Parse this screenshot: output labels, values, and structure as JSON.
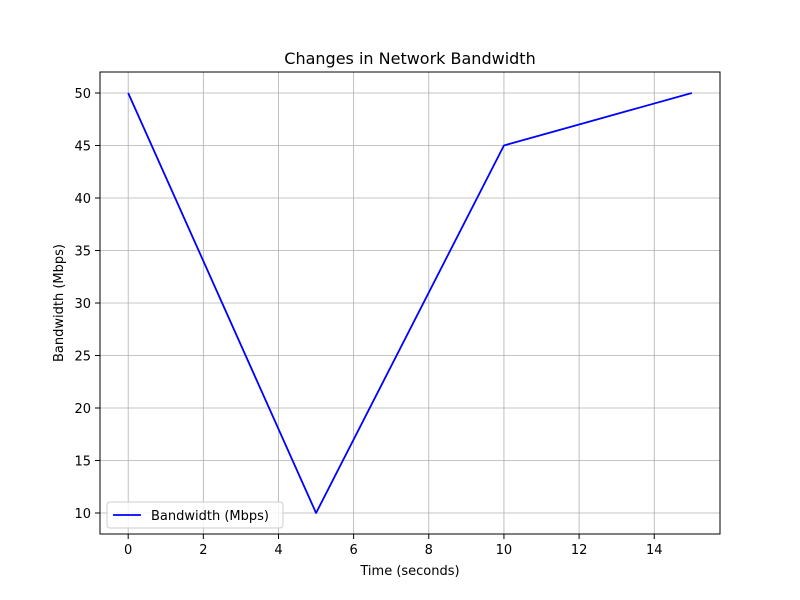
{
  "chart_data": {
    "type": "line",
    "title": "Changes in Network Bandwidth",
    "xlabel": "Time (seconds)",
    "ylabel": "Bandwidth (Mbps)",
    "xlim": [
      -0.75,
      15.75
    ],
    "ylim": [
      8,
      52
    ],
    "xticks": [
      0,
      2,
      4,
      6,
      8,
      10,
      12,
      14
    ],
    "yticks": [
      10,
      15,
      20,
      25,
      30,
      35,
      40,
      45,
      50
    ],
    "grid": true,
    "legend_position": "lower-left",
    "series": [
      {
        "name": "Bandwidth (Mbps)",
        "color": "#0000ff",
        "x": [
          0,
          5,
          10,
          15
        ],
        "y": [
          50,
          10,
          45,
          50
        ]
      }
    ]
  }
}
